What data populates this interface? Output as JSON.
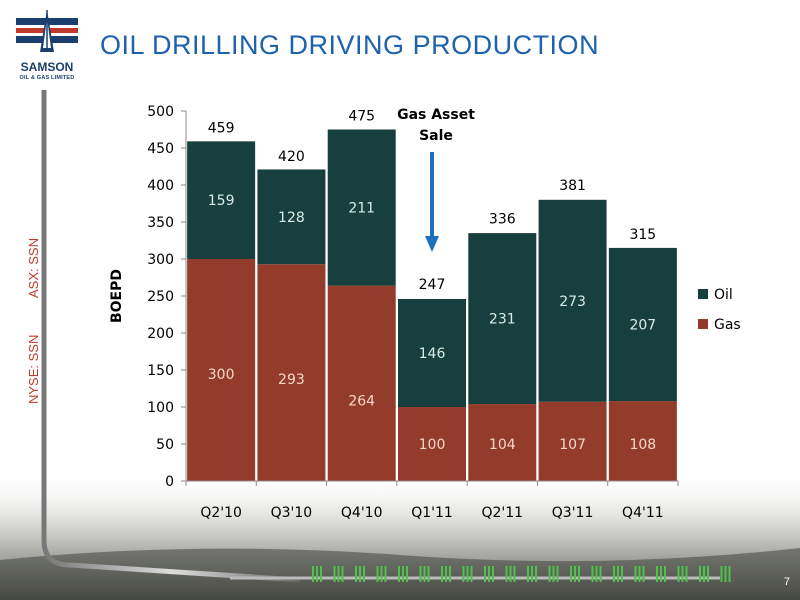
{
  "logo": {
    "name": "SAMSON",
    "sub": "OIL & GAS LIMITED"
  },
  "slide": {
    "title": "OIL DRILLING DRIVING PRODUCTION",
    "page_number": "7"
  },
  "side_labels": {
    "asx": "ASX: SSN",
    "nyse": "NYSE: SSN"
  },
  "colors": {
    "oil": "#173f3d",
    "gas": "#943c2c",
    "title": "#1e62ad",
    "accent_red": "#c0392b",
    "arrow": "#1e6fc0"
  },
  "chart_data": {
    "type": "bar",
    "stacked": true,
    "categories": [
      "Q2'10",
      "Q3'10",
      "Q4'10",
      "Q1'11",
      "Q2'11",
      "Q3'11",
      "Q4'11"
    ],
    "series": [
      {
        "name": "Gas",
        "values": [
          300,
          293,
          264,
          100,
          104,
          107,
          108
        ]
      },
      {
        "name": "Oil",
        "values": [
          159,
          128,
          211,
          146,
          231,
          273,
          207
        ]
      }
    ],
    "totals": [
      459,
      420,
      475,
      247,
      336,
      381,
      315
    ],
    "ylabel": "BOEPD",
    "ylim": [
      0,
      500
    ],
    "yticks": [
      0,
      50,
      100,
      150,
      200,
      250,
      300,
      350,
      400,
      450,
      500
    ],
    "legend": [
      "Oil",
      "Gas"
    ],
    "legend_position": "right",
    "grid": false,
    "annotation": {
      "lines": [
        "Gas Asset",
        "Sale"
      ],
      "category": "Q1'11"
    }
  }
}
